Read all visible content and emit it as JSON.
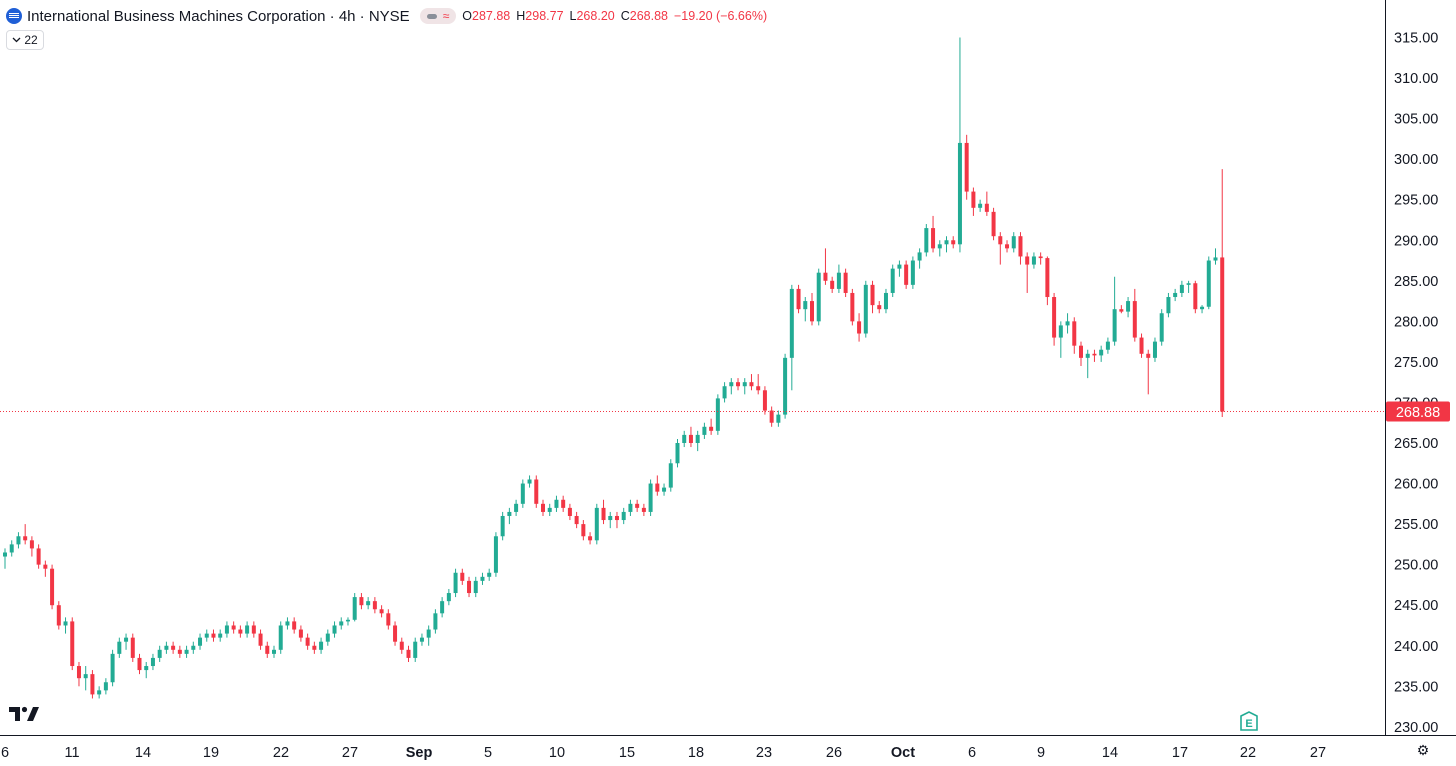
{
  "header": {
    "symbol_name": "International Business Machines Corporation · 4h · NYSE",
    "ohlc": {
      "o_label": "O",
      "o_value": "287.88",
      "h_label": "H",
      "h_value": "298.77",
      "l_label": "L",
      "l_value": "268.20",
      "c_label": "C",
      "c_value": "268.88",
      "change": "−19.20 (−6.66%)"
    },
    "collapse_count": "22"
  },
  "colors": {
    "up": "#22ab94",
    "down": "#f23645",
    "grid": "#e6e6e6",
    "axis_text": "#131722"
  },
  "icons": {
    "logo": "ibm-logo-icon",
    "collapse": "chevron-down-icon",
    "brand": "tradingview-logo-icon",
    "settings": "gear-icon",
    "earnings": "earnings-e-icon"
  },
  "chart_data": {
    "type": "candlestick",
    "title": "International Business Machines Corporation · 4h · NYSE",
    "interval": "4h",
    "ylim": [
      229,
      316
    ],
    "grid": false,
    "y_ticks": [
      "315.00",
      "310.00",
      "305.00",
      "300.00",
      "295.00",
      "290.00",
      "285.00",
      "280.00",
      "275.00",
      "270.00",
      "265.00",
      "260.00",
      "255.00",
      "250.00",
      "245.00",
      "240.00",
      "235.00",
      "230.00"
    ],
    "x_ticks": [
      "6",
      "11",
      "14",
      "19",
      "22",
      "27",
      "Sep",
      "5",
      "10",
      "15",
      "18",
      "23",
      "26",
      "Oct",
      "6",
      "9",
      "14",
      "17",
      "22",
      "27"
    ],
    "bold_x_ticks": [
      "Sep",
      "Oct"
    ],
    "last_price": "268.88",
    "earnings_marker": "E",
    "candles": [
      {
        "o": 251.0,
        "h": 252.0,
        "l": 249.5,
        "c": 251.5
      },
      {
        "o": 251.5,
        "h": 253.0,
        "l": 251.0,
        "c": 252.5
      },
      {
        "o": 252.5,
        "h": 254.0,
        "l": 252.0,
        "c": 253.5
      },
      {
        "o": 253.5,
        "h": 255.0,
        "l": 252.5,
        "c": 253.0
      },
      {
        "o": 253.0,
        "h": 253.5,
        "l": 251.0,
        "c": 252.0
      },
      {
        "o": 252.0,
        "h": 252.5,
        "l": 249.5,
        "c": 250.0
      },
      {
        "o": 250.0,
        "h": 250.5,
        "l": 248.5,
        "c": 249.5
      },
      {
        "o": 249.5,
        "h": 250.0,
        "l": 244.5,
        "c": 245.0
      },
      {
        "o": 245.0,
        "h": 245.5,
        "l": 242.0,
        "c": 242.5
      },
      {
        "o": 242.5,
        "h": 243.5,
        "l": 241.5,
        "c": 243.0
      },
      {
        "o": 243.0,
        "h": 243.5,
        "l": 237.0,
        "c": 237.5
      },
      {
        "o": 237.5,
        "h": 238.0,
        "l": 235.0,
        "c": 236.0
      },
      {
        "o": 236.0,
        "h": 237.5,
        "l": 234.5,
        "c": 236.5
      },
      {
        "o": 236.5,
        "h": 237.0,
        "l": 233.5,
        "c": 234.0
      },
      {
        "o": 234.0,
        "h": 235.0,
        "l": 233.5,
        "c": 234.5
      },
      {
        "o": 234.5,
        "h": 236.0,
        "l": 234.0,
        "c": 235.5
      },
      {
        "o": 235.5,
        "h": 239.5,
        "l": 235.0,
        "c": 239.0
      },
      {
        "o": 239.0,
        "h": 241.0,
        "l": 238.5,
        "c": 240.5
      },
      {
        "o": 240.5,
        "h": 241.5,
        "l": 239.5,
        "c": 241.0
      },
      {
        "o": 241.0,
        "h": 241.5,
        "l": 238.0,
        "c": 238.5
      },
      {
        "o": 238.5,
        "h": 239.0,
        "l": 236.5,
        "c": 237.0
      },
      {
        "o": 237.0,
        "h": 238.0,
        "l": 236.0,
        "c": 237.5
      },
      {
        "o": 237.5,
        "h": 239.0,
        "l": 237.0,
        "c": 238.5
      },
      {
        "o": 238.5,
        "h": 240.0,
        "l": 238.0,
        "c": 239.5
      },
      {
        "o": 239.5,
        "h": 240.5,
        "l": 239.0,
        "c": 240.0
      },
      {
        "o": 240.0,
        "h": 240.5,
        "l": 239.0,
        "c": 239.5
      },
      {
        "o": 239.5,
        "h": 240.0,
        "l": 238.5,
        "c": 239.0
      },
      {
        "o": 239.0,
        "h": 240.0,
        "l": 238.5,
        "c": 239.5
      },
      {
        "o": 239.5,
        "h": 240.5,
        "l": 239.0,
        "c": 240.0
      },
      {
        "o": 240.0,
        "h": 241.5,
        "l": 239.5,
        "c": 241.0
      },
      {
        "o": 241.0,
        "h": 242.0,
        "l": 240.5,
        "c": 241.5
      },
      {
        "o": 241.5,
        "h": 242.0,
        "l": 240.5,
        "c": 241.0
      },
      {
        "o": 241.0,
        "h": 242.0,
        "l": 240.5,
        "c": 241.5
      },
      {
        "o": 241.5,
        "h": 243.0,
        "l": 241.0,
        "c": 242.5
      },
      {
        "o": 242.5,
        "h": 243.0,
        "l": 241.5,
        "c": 242.0
      },
      {
        "o": 242.0,
        "h": 242.5,
        "l": 241.0,
        "c": 241.5
      },
      {
        "o": 241.5,
        "h": 243.0,
        "l": 241.0,
        "c": 242.5
      },
      {
        "o": 242.5,
        "h": 243.0,
        "l": 241.0,
        "c": 241.5
      },
      {
        "o": 241.5,
        "h": 242.0,
        "l": 239.5,
        "c": 240.0
      },
      {
        "o": 240.0,
        "h": 240.5,
        "l": 238.5,
        "c": 239.0
      },
      {
        "o": 239.0,
        "h": 240.0,
        "l": 238.5,
        "c": 239.5
      },
      {
        "o": 239.5,
        "h": 243.0,
        "l": 239.0,
        "c": 242.5
      },
      {
        "o": 242.5,
        "h": 243.5,
        "l": 242.0,
        "c": 243.0
      },
      {
        "o": 243.0,
        "h": 243.5,
        "l": 241.5,
        "c": 242.0
      },
      {
        "o": 242.0,
        "h": 242.5,
        "l": 240.5,
        "c": 241.0
      },
      {
        "o": 241.0,
        "h": 241.5,
        "l": 239.5,
        "c": 240.0
      },
      {
        "o": 240.0,
        "h": 240.5,
        "l": 239.0,
        "c": 239.5
      },
      {
        "o": 239.5,
        "h": 241.0,
        "l": 239.0,
        "c": 240.5
      },
      {
        "o": 240.5,
        "h": 242.0,
        "l": 240.0,
        "c": 241.5
      },
      {
        "o": 241.5,
        "h": 243.0,
        "l": 241.0,
        "c": 242.5
      },
      {
        "o": 242.5,
        "h": 243.5,
        "l": 242.0,
        "c": 243.0
      },
      {
        "o": 243.0,
        "h": 243.5,
        "l": 242.5,
        "c": 243.2
      },
      {
        "o": 243.2,
        "h": 246.5,
        "l": 243.0,
        "c": 246.0
      },
      {
        "o": 246.0,
        "h": 246.5,
        "l": 244.5,
        "c": 245.0
      },
      {
        "o": 245.0,
        "h": 246.0,
        "l": 244.5,
        "c": 245.5
      },
      {
        "o": 245.5,
        "h": 246.0,
        "l": 244.0,
        "c": 244.5
      },
      {
        "o": 244.5,
        "h": 245.0,
        "l": 243.5,
        "c": 244.0
      },
      {
        "o": 244.0,
        "h": 244.5,
        "l": 242.0,
        "c": 242.5
      },
      {
        "o": 242.5,
        "h": 243.0,
        "l": 240.0,
        "c": 240.5
      },
      {
        "o": 240.5,
        "h": 241.0,
        "l": 239.0,
        "c": 239.5
      },
      {
        "o": 239.5,
        "h": 240.0,
        "l": 238.0,
        "c": 238.5
      },
      {
        "o": 238.5,
        "h": 241.0,
        "l": 238.0,
        "c": 240.5
      },
      {
        "o": 240.5,
        "h": 241.5,
        "l": 240.0,
        "c": 241.0
      },
      {
        "o": 241.0,
        "h": 242.5,
        "l": 240.0,
        "c": 242.0
      },
      {
        "o": 242.0,
        "h": 244.5,
        "l": 241.5,
        "c": 244.0
      },
      {
        "o": 244.0,
        "h": 246.0,
        "l": 243.5,
        "c": 245.5
      },
      {
        "o": 245.5,
        "h": 247.0,
        "l": 245.0,
        "c": 246.5
      },
      {
        "o": 246.5,
        "h": 249.5,
        "l": 246.0,
        "c": 249.0
      },
      {
        "o": 249.0,
        "h": 249.5,
        "l": 247.5,
        "c": 248.0
      },
      {
        "o": 248.0,
        "h": 248.5,
        "l": 246.0,
        "c": 246.5
      },
      {
        "o": 246.5,
        "h": 248.5,
        "l": 246.0,
        "c": 248.0
      },
      {
        "o": 248.0,
        "h": 249.0,
        "l": 247.5,
        "c": 248.5
      },
      {
        "o": 248.5,
        "h": 249.5,
        "l": 248.0,
        "c": 249.0
      },
      {
        "o": 249.0,
        "h": 254.0,
        "l": 248.5,
        "c": 253.5
      },
      {
        "o": 253.5,
        "h": 256.5,
        "l": 253.0,
        "c": 256.0
      },
      {
        "o": 256.0,
        "h": 257.0,
        "l": 255.0,
        "c": 256.5
      },
      {
        "o": 256.5,
        "h": 258.0,
        "l": 256.0,
        "c": 257.5
      },
      {
        "o": 257.5,
        "h": 260.5,
        "l": 257.0,
        "c": 260.0
      },
      {
        "o": 260.0,
        "h": 261.0,
        "l": 259.5,
        "c": 260.5
      },
      {
        "o": 260.5,
        "h": 261.0,
        "l": 257.0,
        "c": 257.5
      },
      {
        "o": 257.5,
        "h": 258.0,
        "l": 256.0,
        "c": 256.5
      },
      {
        "o": 256.5,
        "h": 257.5,
        "l": 256.0,
        "c": 257.0
      },
      {
        "o": 257.0,
        "h": 258.5,
        "l": 256.5,
        "c": 258.0
      },
      {
        "o": 258.0,
        "h": 258.5,
        "l": 256.5,
        "c": 257.0
      },
      {
        "o": 257.0,
        "h": 257.5,
        "l": 255.5,
        "c": 256.0
      },
      {
        "o": 256.0,
        "h": 256.5,
        "l": 254.5,
        "c": 255.0
      },
      {
        "o": 255.0,
        "h": 255.5,
        "l": 253.0,
        "c": 253.5
      },
      {
        "o": 253.5,
        "h": 254.0,
        "l": 252.5,
        "c": 253.0
      },
      {
        "o": 253.0,
        "h": 257.5,
        "l": 252.5,
        "c": 257.0
      },
      {
        "o": 257.0,
        "h": 258.0,
        "l": 255.0,
        "c": 255.5
      },
      {
        "o": 255.5,
        "h": 256.5,
        "l": 254.5,
        "c": 256.0
      },
      {
        "o": 256.0,
        "h": 256.5,
        "l": 254.5,
        "c": 255.5
      },
      {
        "o": 255.5,
        "h": 257.0,
        "l": 255.0,
        "c": 256.5
      },
      {
        "o": 256.5,
        "h": 258.0,
        "l": 256.0,
        "c": 257.5
      },
      {
        "o": 257.5,
        "h": 258.0,
        "l": 256.5,
        "c": 257.0
      },
      {
        "o": 257.0,
        "h": 257.5,
        "l": 256.0,
        "c": 256.5
      },
      {
        "o": 256.5,
        "h": 260.5,
        "l": 256.0,
        "c": 260.0
      },
      {
        "o": 260.0,
        "h": 261.0,
        "l": 258.5,
        "c": 259.0
      },
      {
        "o": 259.0,
        "h": 260.0,
        "l": 258.5,
        "c": 259.5
      },
      {
        "o": 259.5,
        "h": 263.0,
        "l": 259.0,
        "c": 262.5
      },
      {
        "o": 262.5,
        "h": 265.5,
        "l": 262.0,
        "c": 265.0
      },
      {
        "o": 265.0,
        "h": 266.5,
        "l": 264.5,
        "c": 266.0
      },
      {
        "o": 266.0,
        "h": 267.0,
        "l": 264.5,
        "c": 265.0
      },
      {
        "o": 265.0,
        "h": 266.5,
        "l": 264.0,
        "c": 266.0
      },
      {
        "o": 266.0,
        "h": 267.5,
        "l": 265.5,
        "c": 267.0
      },
      {
        "o": 267.0,
        "h": 268.0,
        "l": 266.0,
        "c": 266.5
      },
      {
        "o": 266.5,
        "h": 271.0,
        "l": 266.0,
        "c": 270.5
      },
      {
        "o": 270.5,
        "h": 272.5,
        "l": 270.0,
        "c": 272.0
      },
      {
        "o": 272.0,
        "h": 273.0,
        "l": 271.0,
        "c": 272.5
      },
      {
        "o": 272.5,
        "h": 273.0,
        "l": 271.5,
        "c": 272.0
      },
      {
        "o": 272.0,
        "h": 273.0,
        "l": 271.0,
        "c": 272.5
      },
      {
        "o": 272.5,
        "h": 273.5,
        "l": 271.5,
        "c": 272.0
      },
      {
        "o": 272.0,
        "h": 273.5,
        "l": 271.0,
        "c": 271.5
      },
      {
        "o": 271.5,
        "h": 272.0,
        "l": 268.5,
        "c": 269.0
      },
      {
        "o": 269.0,
        "h": 269.5,
        "l": 267.0,
        "c": 267.5
      },
      {
        "o": 267.5,
        "h": 269.0,
        "l": 267.0,
        "c": 268.5
      },
      {
        "o": 268.5,
        "h": 276.0,
        "l": 268.0,
        "c": 275.5
      },
      {
        "o": 275.5,
        "h": 284.5,
        "l": 271.5,
        "c": 284.0
      },
      {
        "o": 284.0,
        "h": 284.5,
        "l": 281.0,
        "c": 281.5
      },
      {
        "o": 281.5,
        "h": 283.0,
        "l": 280.0,
        "c": 282.5
      },
      {
        "o": 282.5,
        "h": 283.5,
        "l": 279.5,
        "c": 280.0
      },
      {
        "o": 280.0,
        "h": 286.5,
        "l": 279.5,
        "c": 286.0
      },
      {
        "o": 286.0,
        "h": 289.0,
        "l": 284.5,
        "c": 285.0
      },
      {
        "o": 285.0,
        "h": 285.5,
        "l": 283.5,
        "c": 284.0
      },
      {
        "o": 284.0,
        "h": 287.0,
        "l": 283.5,
        "c": 286.0
      },
      {
        "o": 286.0,
        "h": 286.5,
        "l": 283.0,
        "c": 283.5
      },
      {
        "o": 283.5,
        "h": 284.0,
        "l": 279.5,
        "c": 280.0
      },
      {
        "o": 280.0,
        "h": 281.0,
        "l": 277.5,
        "c": 278.5
      },
      {
        "o": 278.5,
        "h": 285.0,
        "l": 278.0,
        "c": 284.5
      },
      {
        "o": 284.5,
        "h": 285.0,
        "l": 281.0,
        "c": 282.0
      },
      {
        "o": 282.0,
        "h": 282.5,
        "l": 281.0,
        "c": 281.5
      },
      {
        "o": 281.5,
        "h": 284.0,
        "l": 281.0,
        "c": 283.5
      },
      {
        "o": 283.5,
        "h": 287.0,
        "l": 283.0,
        "c": 286.5
      },
      {
        "o": 286.5,
        "h": 287.5,
        "l": 285.5,
        "c": 287.0
      },
      {
        "o": 287.0,
        "h": 287.5,
        "l": 284.0,
        "c": 284.5
      },
      {
        "o": 284.5,
        "h": 288.0,
        "l": 284.0,
        "c": 287.5
      },
      {
        "o": 287.5,
        "h": 289.0,
        "l": 286.5,
        "c": 288.5
      },
      {
        "o": 288.5,
        "h": 292.0,
        "l": 288.0,
        "c": 291.5
      },
      {
        "o": 291.5,
        "h": 293.0,
        "l": 288.5,
        "c": 289.0
      },
      {
        "o": 289.0,
        "h": 290.0,
        "l": 288.0,
        "c": 289.5
      },
      {
        "o": 289.5,
        "h": 290.5,
        "l": 288.5,
        "c": 290.0
      },
      {
        "o": 290.0,
        "h": 290.5,
        "l": 289.0,
        "c": 289.5
      },
      {
        "o": 289.5,
        "h": 315.0,
        "l": 288.5,
        "c": 302.0
      },
      {
        "o": 302.0,
        "h": 303.0,
        "l": 295.0,
        "c": 296.0
      },
      {
        "o": 296.0,
        "h": 296.5,
        "l": 293.0,
        "c": 294.0
      },
      {
        "o": 294.0,
        "h": 295.0,
        "l": 293.5,
        "c": 294.5
      },
      {
        "o": 294.5,
        "h": 296.0,
        "l": 293.0,
        "c": 293.5
      },
      {
        "o": 293.5,
        "h": 294.0,
        "l": 290.0,
        "c": 290.5
      },
      {
        "o": 290.5,
        "h": 291.0,
        "l": 287.0,
        "c": 289.5
      },
      {
        "o": 289.5,
        "h": 290.0,
        "l": 288.5,
        "c": 289.0
      },
      {
        "o": 289.0,
        "h": 291.0,
        "l": 288.5,
        "c": 290.5
      },
      {
        "o": 290.5,
        "h": 291.0,
        "l": 287.0,
        "c": 288.0
      },
      {
        "o": 288.0,
        "h": 288.5,
        "l": 283.5,
        "c": 287.0
      },
      {
        "o": 287.0,
        "h": 288.5,
        "l": 286.5,
        "c": 288.0
      },
      {
        "o": 288.0,
        "h": 288.5,
        "l": 287.0,
        "c": 287.8
      },
      {
        "o": 287.8,
        "h": 288.0,
        "l": 282.0,
        "c": 283.0
      },
      {
        "o": 283.0,
        "h": 283.5,
        "l": 277.0,
        "c": 278.0
      },
      {
        "o": 278.0,
        "h": 280.0,
        "l": 275.5,
        "c": 279.5
      },
      {
        "o": 279.5,
        "h": 281.0,
        "l": 278.5,
        "c": 280.0
      },
      {
        "o": 280.0,
        "h": 280.5,
        "l": 276.0,
        "c": 277.0
      },
      {
        "o": 277.0,
        "h": 277.5,
        "l": 274.5,
        "c": 275.5
      },
      {
        "o": 275.5,
        "h": 276.5,
        "l": 273.0,
        "c": 276.0
      },
      {
        "o": 276.0,
        "h": 276.5,
        "l": 275.0,
        "c": 275.8
      },
      {
        "o": 275.8,
        "h": 277.0,
        "l": 275.0,
        "c": 276.5
      },
      {
        "o": 276.5,
        "h": 278.0,
        "l": 276.0,
        "c": 277.5
      },
      {
        "o": 277.5,
        "h": 285.5,
        "l": 277.0,
        "c": 281.5
      },
      {
        "o": 281.5,
        "h": 282.0,
        "l": 281.0,
        "c": 281.2
      },
      {
        "o": 281.2,
        "h": 283.0,
        "l": 280.5,
        "c": 282.5
      },
      {
        "o": 282.5,
        "h": 284.0,
        "l": 277.5,
        "c": 278.0
      },
      {
        "o": 278.0,
        "h": 278.5,
        "l": 275.5,
        "c": 276.0
      },
      {
        "o": 276.0,
        "h": 276.5,
        "l": 271.0,
        "c": 275.5
      },
      {
        "o": 275.5,
        "h": 278.0,
        "l": 275.0,
        "c": 277.5
      },
      {
        "o": 277.5,
        "h": 281.5,
        "l": 277.0,
        "c": 281.0
      },
      {
        "o": 281.0,
        "h": 283.5,
        "l": 280.5,
        "c": 283.0
      },
      {
        "o": 283.0,
        "h": 284.0,
        "l": 282.5,
        "c": 283.5
      },
      {
        "o": 283.5,
        "h": 285.0,
        "l": 283.0,
        "c": 284.5
      },
      {
        "o": 284.5,
        "h": 285.0,
        "l": 283.5,
        "c": 284.7
      },
      {
        "o": 284.7,
        "h": 285.0,
        "l": 281.0,
        "c": 281.5
      },
      {
        "o": 281.5,
        "h": 282.0,
        "l": 281.0,
        "c": 281.8
      },
      {
        "o": 281.8,
        "h": 288.0,
        "l": 281.5,
        "c": 287.5
      },
      {
        "o": 287.5,
        "h": 289.0,
        "l": 287.0,
        "c": 287.88
      },
      {
        "o": 287.88,
        "h": 298.77,
        "l": 268.2,
        "c": 268.88
      }
    ]
  }
}
